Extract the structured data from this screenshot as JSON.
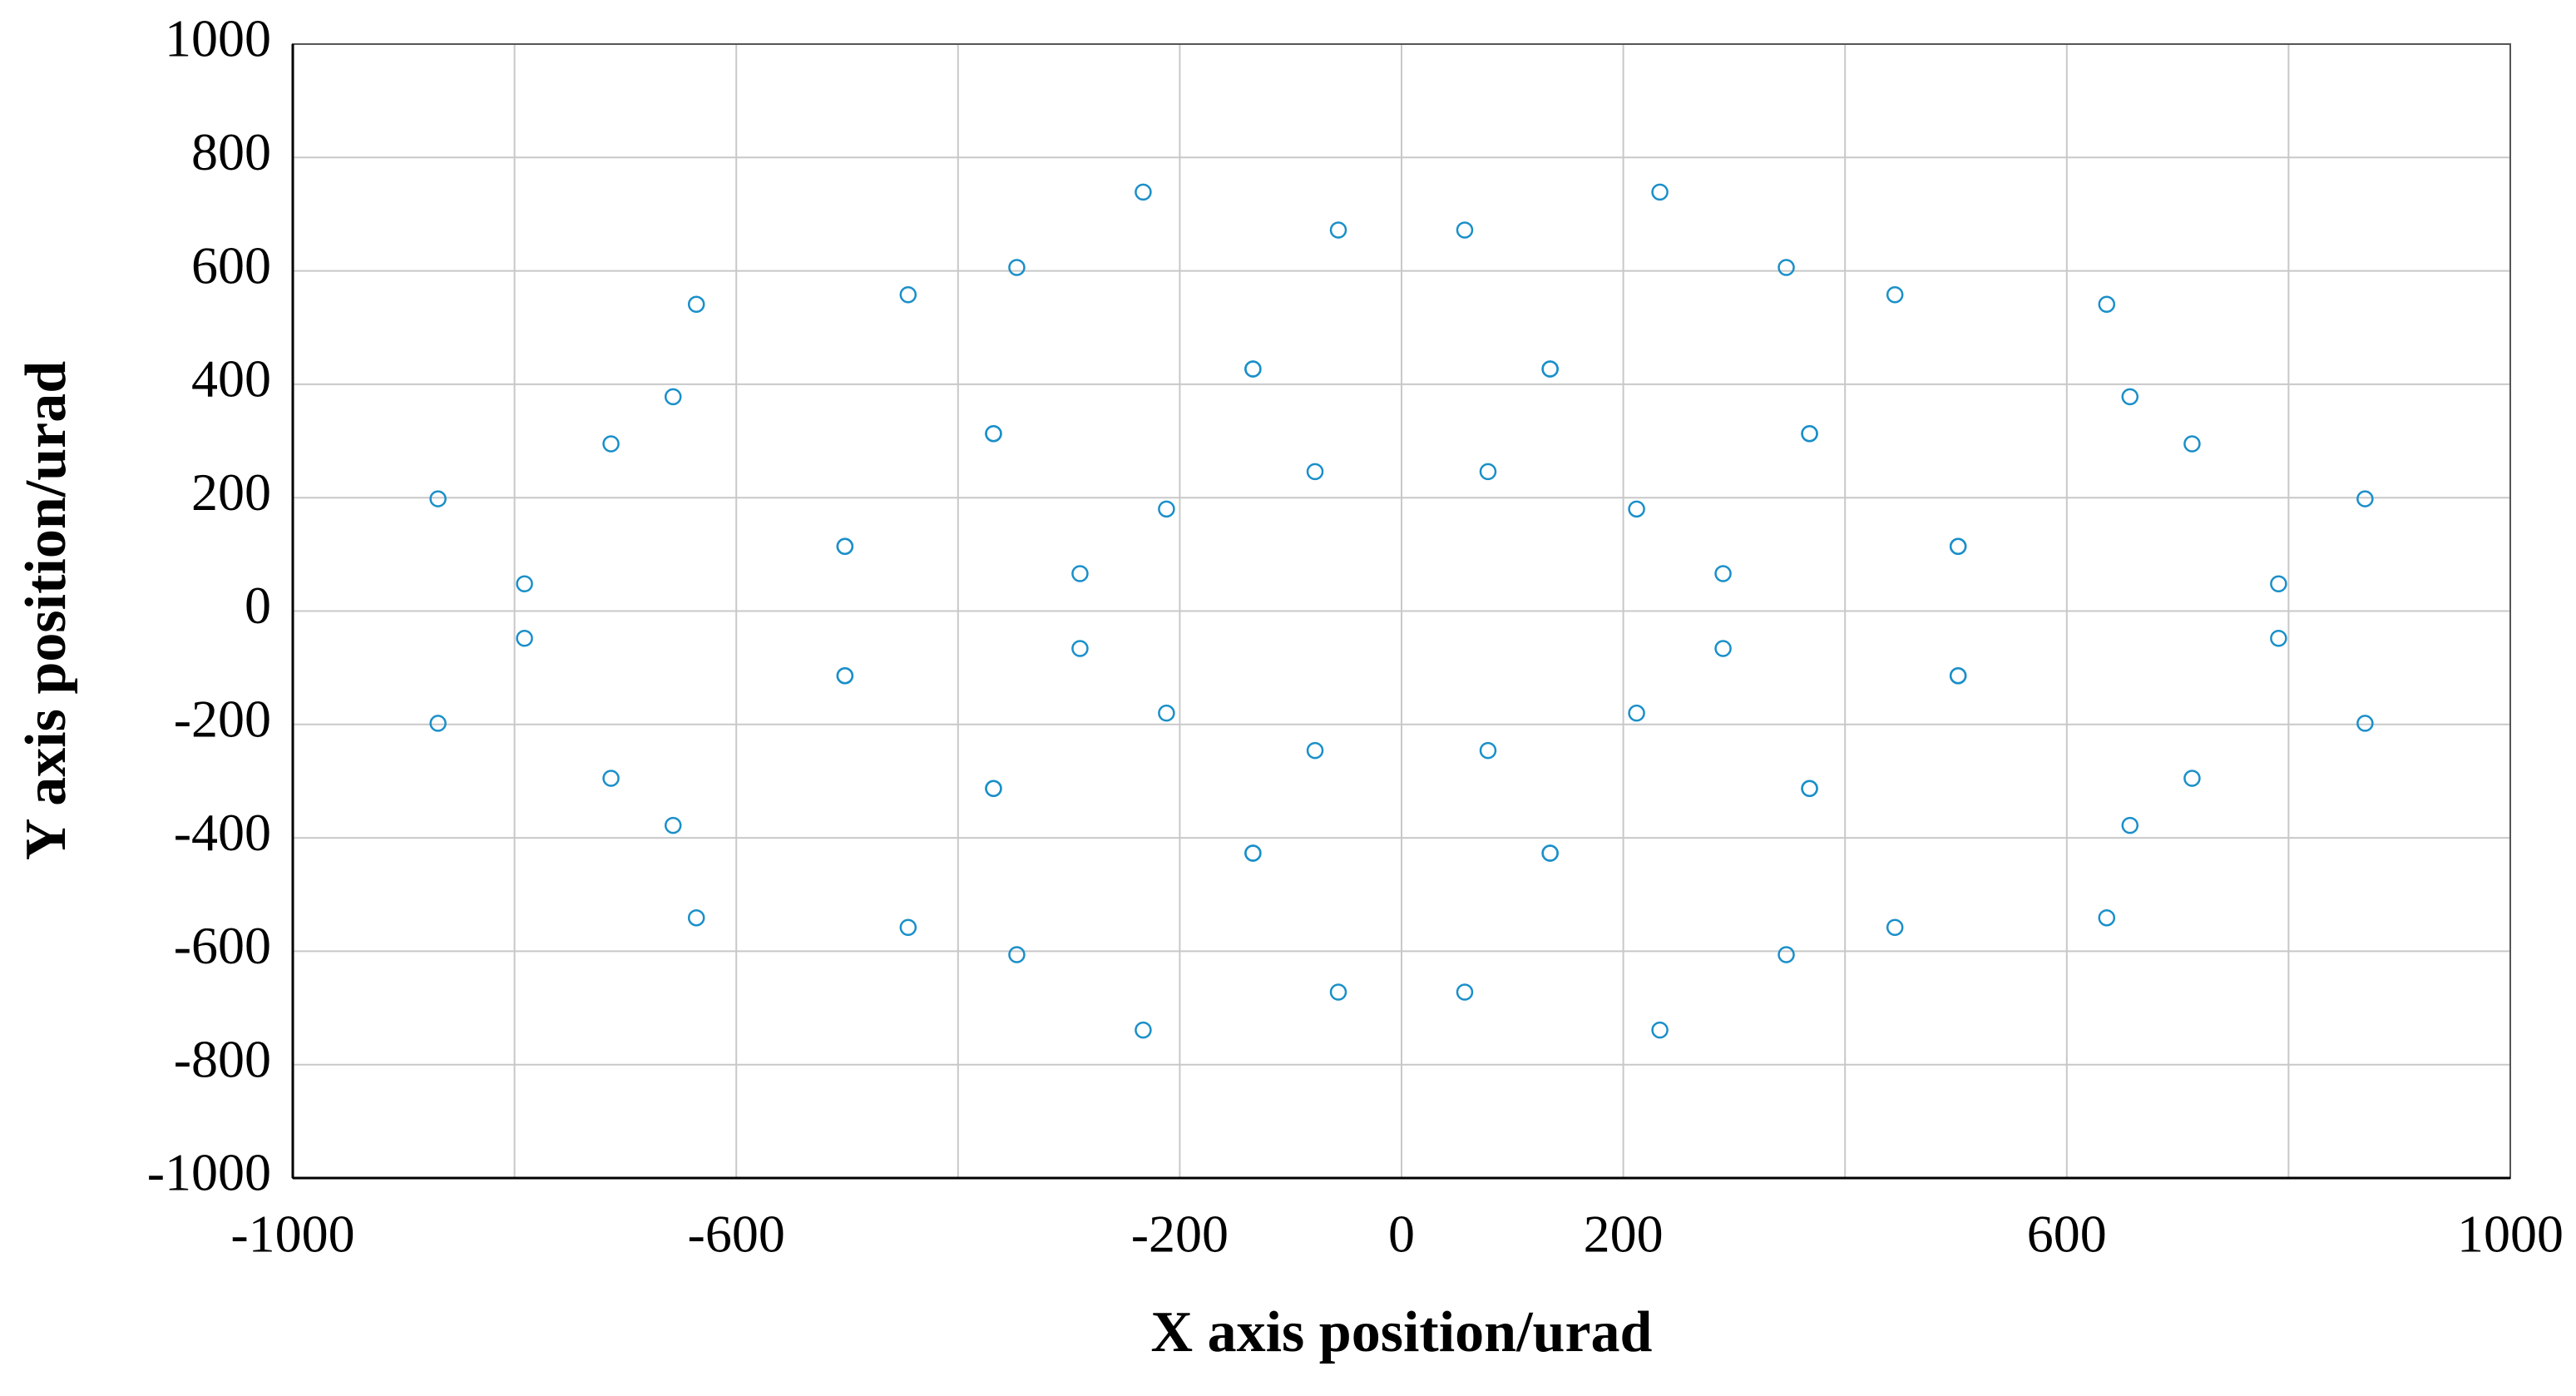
{
  "chart_data": {
    "type": "scatter",
    "xlabel": "X axis position/urad",
    "ylabel": "Y axis position/urad",
    "color": "#1a8fc9",
    "marker": "hollow-circle",
    "grid": true,
    "xlim": [
      -1000,
      1000
    ],
    "ylim": [
      -1000,
      1000
    ],
    "xticks": [
      -1000,
      -600,
      -200,
      0,
      200,
      600,
      1000
    ],
    "xgrid": [
      -1000,
      -800,
      -600,
      -400,
      -200,
      0,
      200,
      400,
      600,
      800,
      1000
    ],
    "yticks": [
      -1000,
      -800,
      -600,
      -400,
      -200,
      0,
      200,
      400,
      600,
      800,
      1000
    ],
    "x": [
      869,
      713,
      368,
      -78,
      -502,
      -791,
      -869,
      -713,
      -368,
      78,
      502,
      791,
      869,
      713,
      368,
      -78,
      -502,
      -791,
      -869,
      -713,
      -368,
      78,
      502,
      791,
      636,
      445,
      134,
      -212,
      -502,
      -657,
      -636,
      -445,
      -134,
      212,
      502,
      657,
      636,
      445,
      134,
      -212,
      -502,
      -657,
      -636,
      -445,
      -134,
      212,
      502,
      657,
      233,
      57,
      -134,
      -290,
      -368,
      -347,
      -233,
      -57,
      134,
      290,
      368,
      347,
      233,
      57,
      -134,
      -290,
      -368,
      -347,
      -233,
      -57,
      134,
      290,
      368,
      347
    ],
    "values": [
      198,
      295,
      313,
      246,
      114,
      -48,
      -198,
      -295,
      -313,
      -246,
      -114,
      48,
      -198,
      -295,
      -313,
      -246,
      -114,
      48,
      198,
      295,
      313,
      246,
      114,
      -48,
      541,
      558,
      427,
      180,
      -114,
      -378,
      -541,
      -558,
      -427,
      -180,
      114,
      378,
      -541,
      -558,
      -427,
      -180,
      114,
      378,
      541,
      558,
      427,
      180,
      -114,
      -378,
      739,
      672,
      427,
      66,
      -313,
      -606,
      -739,
      -672,
      -427,
      -66,
      313,
      606,
      -739,
      -672,
      -427,
      -66,
      313,
      606,
      739,
      672,
      427,
      66,
      -313,
      -606
    ]
  }
}
